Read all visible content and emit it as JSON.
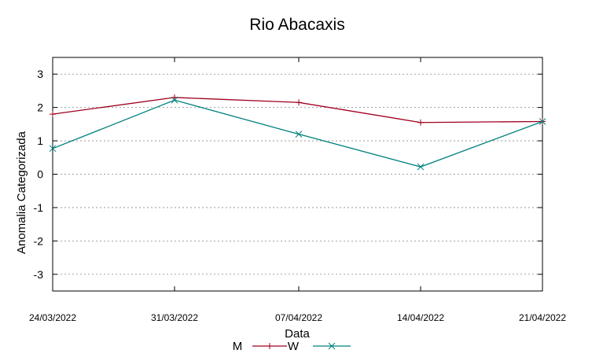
{
  "chart_data": {
    "type": "line",
    "title": "Rio Abacaxis",
    "xlabel": "Data",
    "ylabel": "Anomalia Categorizada",
    "categories": [
      "24/03/2022",
      "31/03/2022",
      "07/04/2022",
      "14/04/2022",
      "21/04/2022"
    ],
    "series": [
      {
        "name": "M",
        "color": "#a0001e",
        "marker": "plus",
        "values": [
          1.8,
          2.3,
          2.15,
          1.55,
          1.58
        ]
      },
      {
        "name": "W",
        "color": "#00807f",
        "marker": "cross",
        "values": [
          0.77,
          2.22,
          1.2,
          0.22,
          1.58
        ]
      }
    ],
    "ylim": [
      -3.5,
      3.5
    ],
    "yticks": [
      -3,
      -2,
      -1,
      0,
      1,
      2,
      3
    ],
    "grid": true,
    "legend_position": "bottom-center"
  }
}
